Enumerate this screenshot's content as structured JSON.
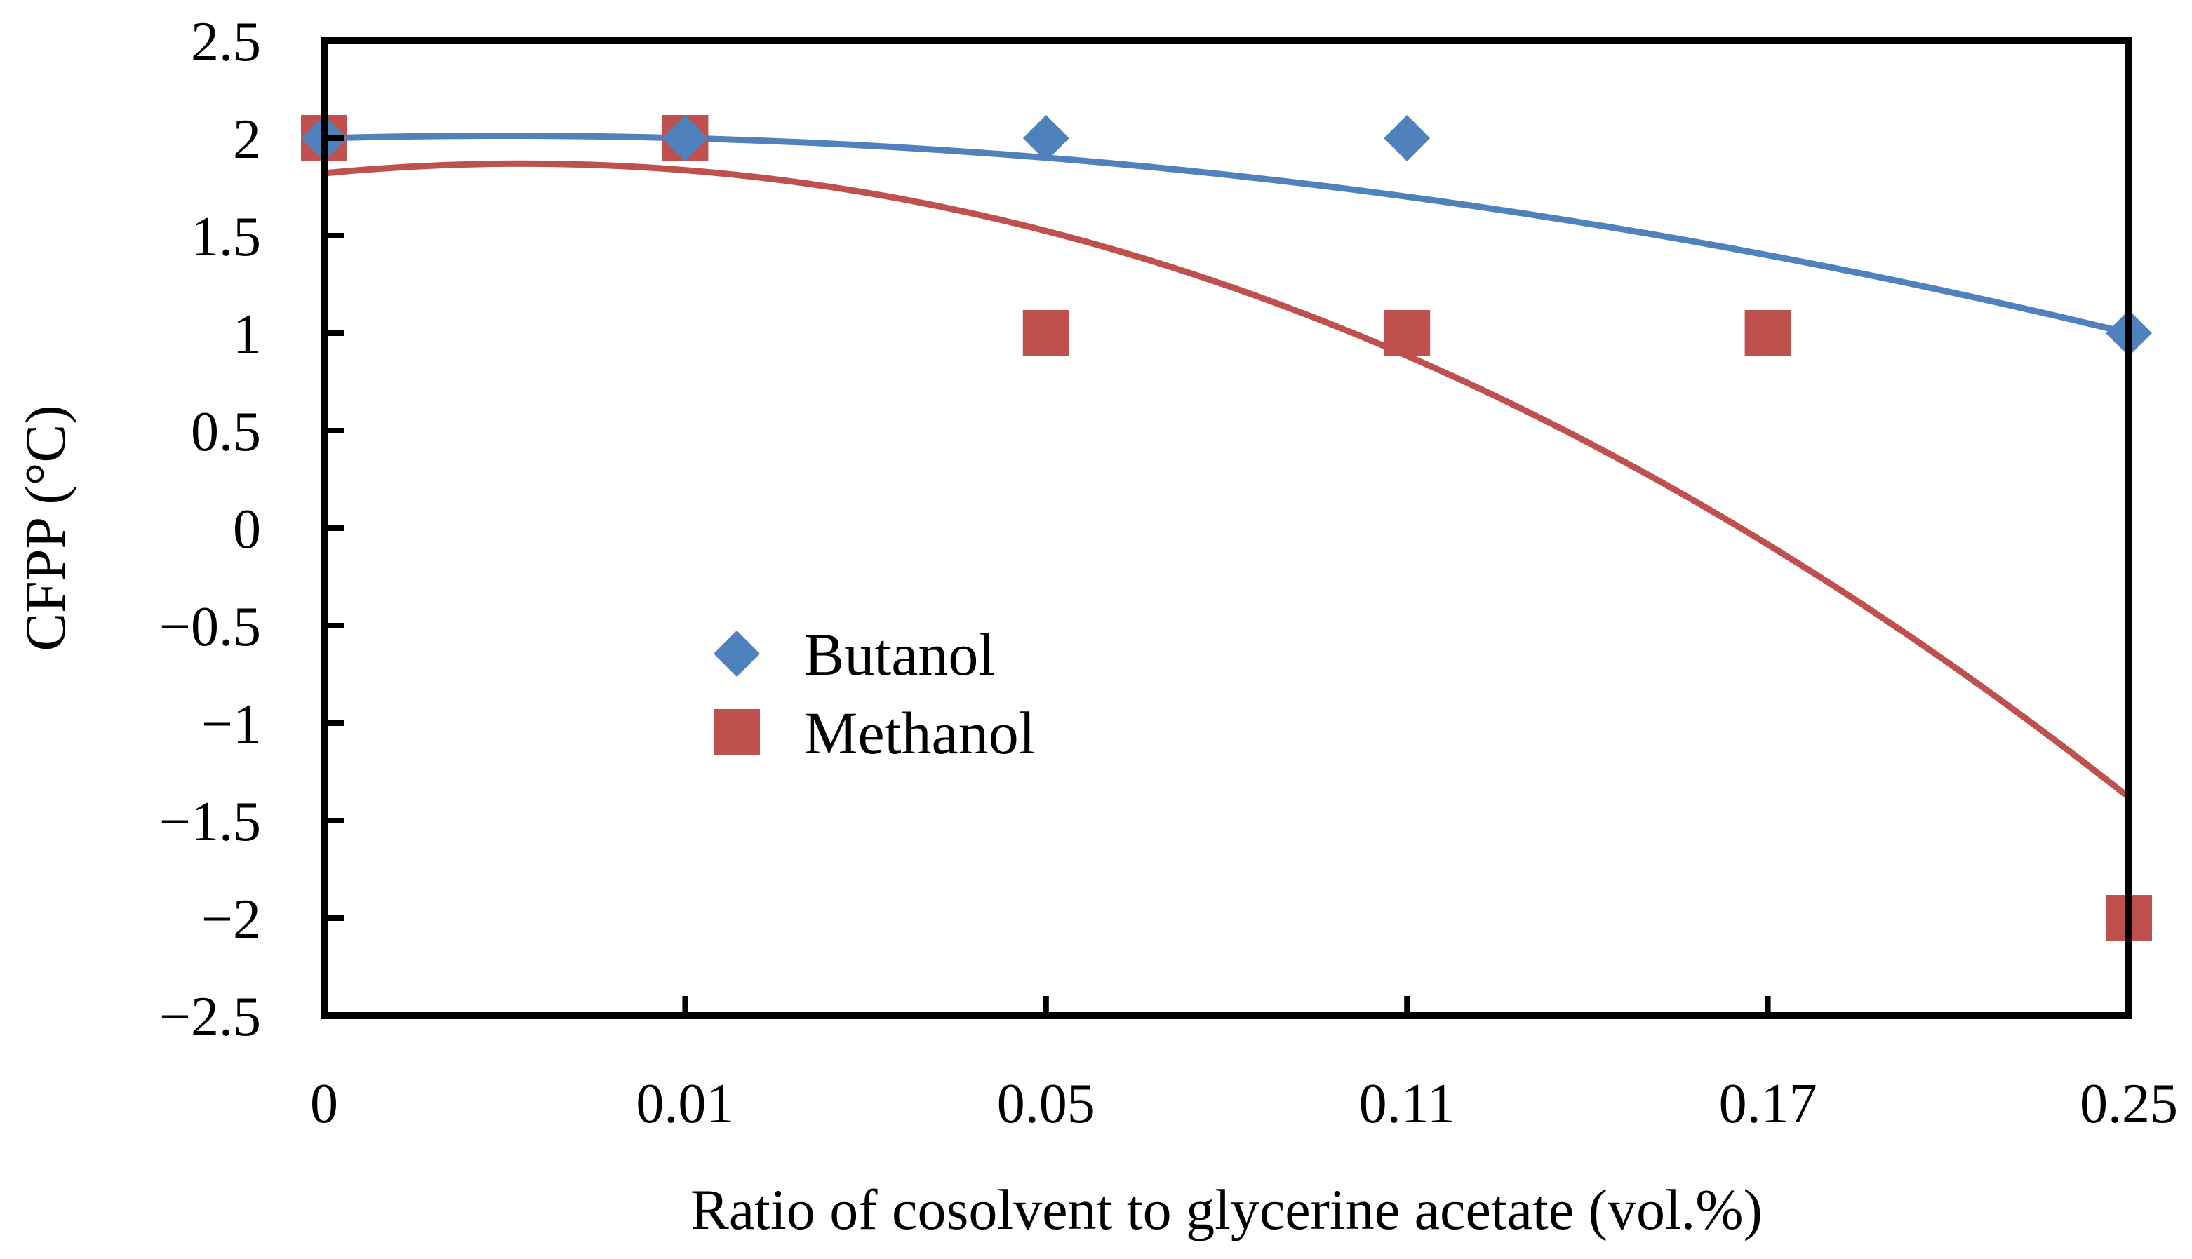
{
  "chart_data": {
    "type": "scatter",
    "xlabel": "Ratio of cosolvent to glycerine acetate (vol.%)",
    "ylabel": "CFPP (°C)",
    "categories": [
      "0",
      "0.01",
      "0.05",
      "0.11",
      "0.17",
      "0.25"
    ],
    "ylim": [
      -2.5,
      2.5
    ],
    "yticks": [
      2.5,
      2,
      1.5,
      1,
      0.5,
      0,
      -0.5,
      -1,
      -1.5,
      -2,
      -2.5
    ],
    "ytick_labels": [
      "2.5",
      "2",
      "1.5",
      "1",
      "0.5",
      "0",
      "−0.5",
      "−1",
      "−1.5",
      "−2",
      "−2.5"
    ],
    "grid": false,
    "legend_position": "center-left",
    "series": [
      {
        "name": "Butanol",
        "marker": "diamond",
        "color": "#4F81BD",
        "line_color": "#4F81BD",
        "points": [
          {
            "cat": 0,
            "y": 2
          },
          {
            "cat": 1,
            "y": 2
          },
          {
            "cat": 2,
            "y": 2
          },
          {
            "cat": 3,
            "y": 2
          },
          {
            "cat": 5,
            "y": 1
          }
        ],
        "trend_poly": [
          2.0,
          0.05,
          -0.05
        ]
      },
      {
        "name": "Methanol",
        "marker": "square",
        "color": "#C0504D",
        "line_color": "#C0504D",
        "points": [
          {
            "cat": 0,
            "y": 2
          },
          {
            "cat": 1,
            "y": 2
          },
          {
            "cat": 2,
            "y": 1
          },
          {
            "cat": 3,
            "y": 1
          },
          {
            "cat": 4,
            "y": 1
          },
          {
            "cat": 5,
            "y": -2
          }
        ],
        "trend_poly": [
          1.82,
          0.18,
          -0.164
        ]
      }
    ]
  }
}
